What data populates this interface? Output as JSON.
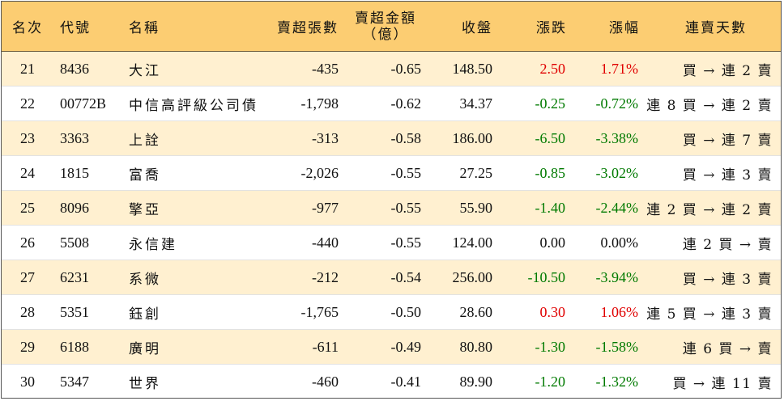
{
  "headers": {
    "rank": "名次",
    "code": "代號",
    "name": "名稱",
    "net_sell_lots": "賣超張數",
    "net_sell_amount_line1": "賣超金額",
    "net_sell_amount_line2": "（億）",
    "close": "收盤",
    "change": "漲跌",
    "change_pct": "漲幅",
    "consecutive_days": "連賣天數"
  },
  "colors": {
    "header_bg": "#fccd72",
    "stripe_bg": "#fff0d0",
    "up": "#e00000",
    "down": "#007a00"
  },
  "rows": [
    {
      "rank": "21",
      "code": "8436",
      "name": "大江",
      "net_sell_lots": "-435",
      "net_sell_amount": "-0.65",
      "close": "148.50",
      "change": "2.50",
      "change_pct": "1.71%",
      "direction": "up",
      "days": "買 → 連 2 賣"
    },
    {
      "rank": "22",
      "code": "00772B",
      "name": "中信高評級公司債",
      "net_sell_lots": "-1,798",
      "net_sell_amount": "-0.62",
      "close": "34.37",
      "change": "-0.25",
      "change_pct": "-0.72%",
      "direction": "down",
      "days": "連 8 買 → 連 2 賣"
    },
    {
      "rank": "23",
      "code": "3363",
      "name": "上詮",
      "net_sell_lots": "-313",
      "net_sell_amount": "-0.58",
      "close": "186.00",
      "change": "-6.50",
      "change_pct": "-3.38%",
      "direction": "down",
      "days": "買 → 連 7 賣"
    },
    {
      "rank": "24",
      "code": "1815",
      "name": "富喬",
      "net_sell_lots": "-2,026",
      "net_sell_amount": "-0.55",
      "close": "27.25",
      "change": "-0.85",
      "change_pct": "-3.02%",
      "direction": "down",
      "days": "買 → 連 3 賣"
    },
    {
      "rank": "25",
      "code": "8096",
      "name": "擎亞",
      "net_sell_lots": "-977",
      "net_sell_amount": "-0.55",
      "close": "55.90",
      "change": "-1.40",
      "change_pct": "-2.44%",
      "direction": "down",
      "days": "連 2 買 → 連 2 賣"
    },
    {
      "rank": "26",
      "code": "5508",
      "name": "永信建",
      "net_sell_lots": "-440",
      "net_sell_amount": "-0.55",
      "close": "124.00",
      "change": "0.00",
      "change_pct": "0.00%",
      "direction": "flat",
      "days": "連 2 買 → 賣"
    },
    {
      "rank": "27",
      "code": "6231",
      "name": "系微",
      "net_sell_lots": "-212",
      "net_sell_amount": "-0.54",
      "close": "256.00",
      "change": "-10.50",
      "change_pct": "-3.94%",
      "direction": "down",
      "days": "買 → 連 3 賣"
    },
    {
      "rank": "28",
      "code": "5351",
      "name": "鈺創",
      "net_sell_lots": "-1,765",
      "net_sell_amount": "-0.50",
      "close": "28.60",
      "change": "0.30",
      "change_pct": "1.06%",
      "direction": "up",
      "days": "連 5 買 → 連 3 賣"
    },
    {
      "rank": "29",
      "code": "6188",
      "name": "廣明",
      "net_sell_lots": "-611",
      "net_sell_amount": "-0.49",
      "close": "80.80",
      "change": "-1.30",
      "change_pct": "-1.58%",
      "direction": "down",
      "days": "連 6 買 → 賣"
    },
    {
      "rank": "30",
      "code": "5347",
      "name": "世界",
      "net_sell_lots": "-460",
      "net_sell_amount": "-0.41",
      "close": "89.90",
      "change": "-1.20",
      "change_pct": "-1.32%",
      "direction": "down",
      "days": "買 → 連 11 賣"
    }
  ]
}
